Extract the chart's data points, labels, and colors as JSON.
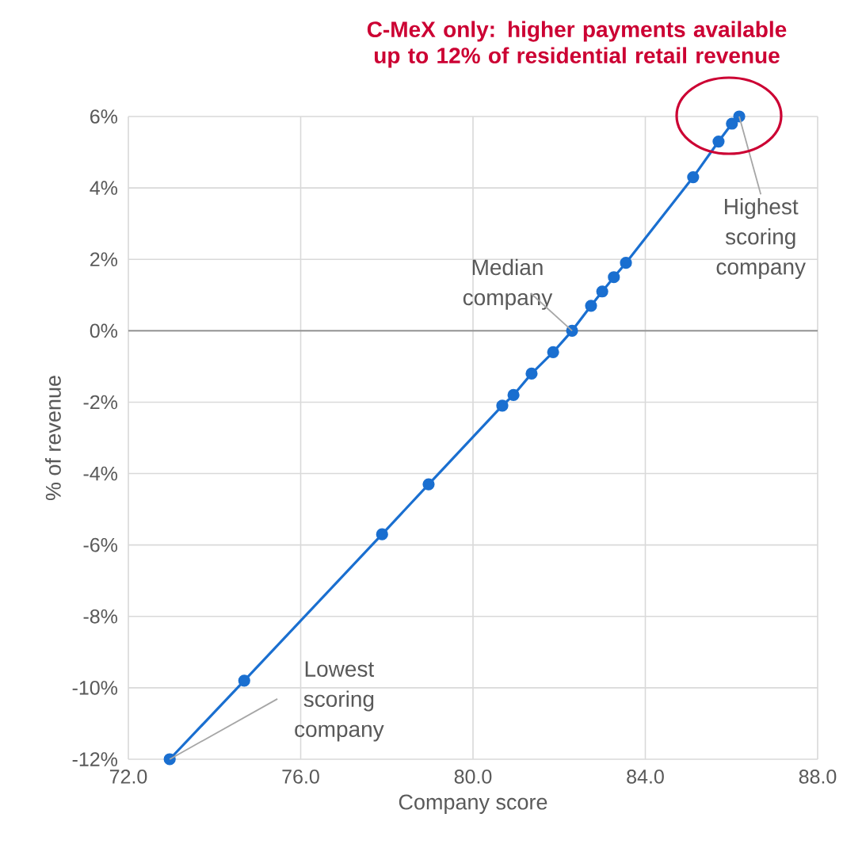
{
  "chart_data": {
    "type": "line",
    "title": "C-MeX only: higher payments available up to 12% of residential retail revenue",
    "xlabel": "Company score",
    "ylabel": "% of revenue",
    "x": [
      72.96,
      74.69,
      77.89,
      78.97,
      80.68,
      80.94,
      81.36,
      81.86,
      82.3,
      82.74,
      83.0,
      83.27,
      83.55,
      85.11,
      85.7,
      86.01,
      86.18
    ],
    "series": [
      {
        "color": "#1a6fd0",
        "values": [
          -12.0,
          -9.8,
          -5.7,
          -4.3,
          -2.1,
          -1.8,
          -1.2,
          -0.6,
          0.0,
          0.7,
          1.1,
          1.5,
          1.9,
          4.3,
          5.3,
          5.8,
          6.0
        ]
      }
    ],
    "xlim": [
      72,
      88
    ],
    "ylim": [
      -12,
      6
    ],
    "xticks": [
      {
        "value": 72,
        "label": "72.0"
      },
      {
        "value": 76,
        "label": "76.0"
      },
      {
        "value": 80,
        "label": "80.0"
      },
      {
        "value": 84,
        "label": "84.0"
      },
      {
        "value": 88,
        "label": "88.0"
      }
    ],
    "yticks": [
      {
        "value": -12,
        "label": "-12%"
      },
      {
        "value": -10,
        "label": "-10%"
      },
      {
        "value": -8,
        "label": "-8%"
      },
      {
        "value": -6,
        "label": "-6%"
      },
      {
        "value": -4,
        "label": "-4%"
      },
      {
        "value": -2,
        "label": "-2%"
      },
      {
        "value": 0,
        "label": "0%"
      },
      {
        "value": 2,
        "label": "2%"
      },
      {
        "value": 4,
        "label": "4%"
      },
      {
        "value": 6,
        "label": "6%"
      }
    ],
    "grid": true,
    "marker": "circle",
    "line_style": "solid",
    "annotations": [
      {
        "text": "Median company",
        "x": 82.3,
        "y": 0.0
      },
      {
        "text": "Highest scoring company",
        "x": 86.18,
        "y": 6.0
      },
      {
        "text": "Lowest scoring company",
        "x": 72.96,
        "y": -12.0
      }
    ]
  }
}
